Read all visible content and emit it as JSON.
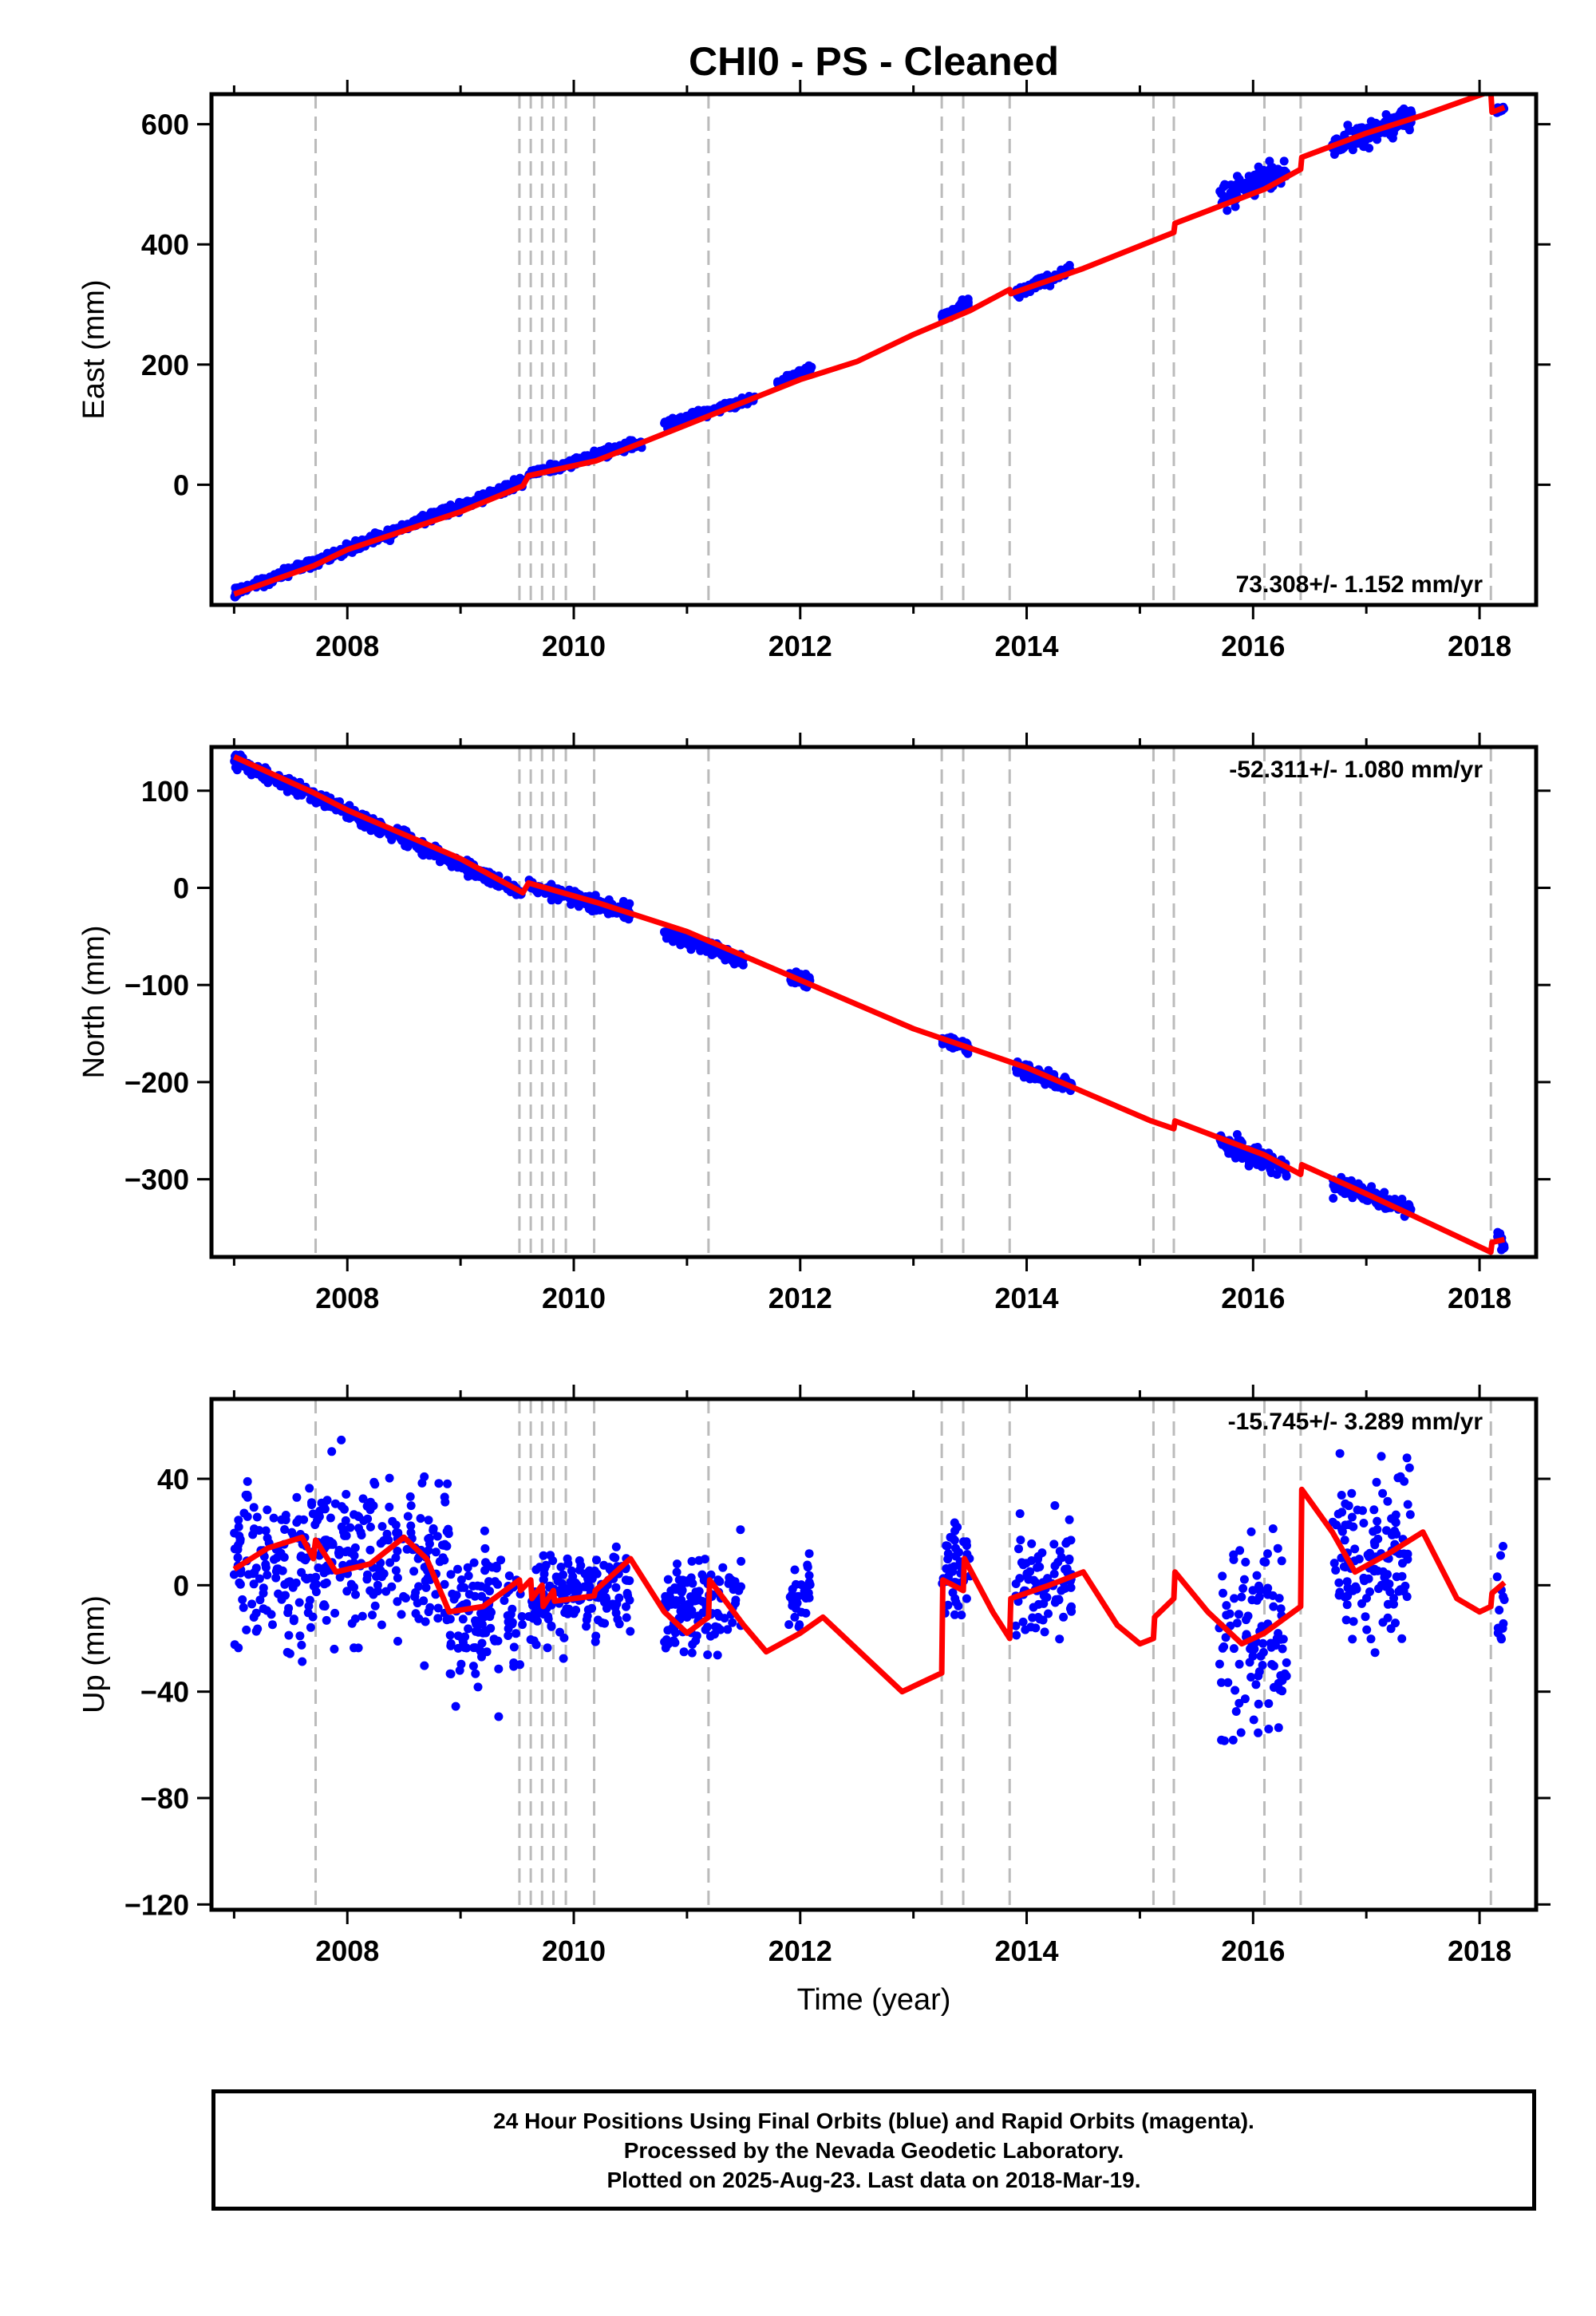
{
  "title": "CHI0  - PS - Cleaned",
  "xaxis": {
    "label": "Time (year)",
    "range": [
      2006.8,
      2018.5
    ],
    "tick_labels": [
      "2008",
      "2010",
      "2012",
      "2014",
      "2016",
      "2018"
    ],
    "ticks": [
      2008,
      2010,
      2012,
      2014,
      2016,
      2018
    ]
  },
  "colors": {
    "data": "#0000ff",
    "model": "#ff0000",
    "break_lines": "#bbbbbb",
    "frame": "#000000"
  },
  "chart_data": [
    {
      "type": "scatter",
      "panel": "east",
      "ylabel": "East (mm)",
      "ylim": [
        -200,
        650
      ],
      "yticks": [
        0,
        200,
        400,
        600
      ],
      "ytick_labels": [
        "0",
        "200",
        "400",
        "600"
      ],
      "minor_xticks": true,
      "rate_text": "73.308+/- 1.152 mm/yr",
      "rate_position": "bottom-right",
      "break_epochs": [
        2007.72,
        2009.52,
        2009.62,
        2009.72,
        2009.82,
        2009.93,
        2010.18,
        2011.19,
        2013.25,
        2013.44,
        2013.85,
        2015.12,
        2015.3,
        2016.1,
        2016.42,
        2018.1
      ],
      "data_segments": [
        {
          "start": 2007.0,
          "end": 2009.55,
          "y0": -180,
          "y1": 5,
          "scatter": 6
        },
        {
          "start": 2009.6,
          "end": 2010.6,
          "y0": 18,
          "y1": 70,
          "scatter": 5
        },
        {
          "start": 2010.8,
          "end": 2011.6,
          "y0": 100,
          "y1": 145,
          "scatter": 5
        },
        {
          "start": 2011.8,
          "end": 2012.1,
          "y0": 170,
          "y1": 195,
          "scatter": 4
        },
        {
          "start": 2013.25,
          "end": 2013.5,
          "y0": 280,
          "y1": 305,
          "scatter": 6
        },
        {
          "start": 2013.9,
          "end": 2014.4,
          "y0": 320,
          "y1": 360,
          "scatter": 6
        },
        {
          "start": 2015.7,
          "end": 2016.3,
          "y0": 480,
          "y1": 525,
          "scatter": 15
        },
        {
          "start": 2016.7,
          "end": 2017.4,
          "y0": 565,
          "y1": 610,
          "scatter": 14
        },
        {
          "start": 2018.15,
          "end": 2018.22,
          "y0": 622,
          "y1": 628,
          "scatter": 4
        }
      ],
      "model_points": [
        [
          2007.0,
          -182
        ],
        [
          2007.7,
          -135
        ],
        [
          2008.0,
          -108
        ],
        [
          2009.0,
          -45
        ],
        [
          2009.55,
          -2
        ],
        [
          2009.6,
          15
        ],
        [
          2010.2,
          40
        ],
        [
          2011.0,
          100
        ],
        [
          2012.0,
          175
        ],
        [
          2012.5,
          205
        ],
        [
          2013.0,
          250
        ],
        [
          2013.5,
          290
        ],
        [
          2013.85,
          325
        ],
        [
          2013.86,
          318
        ],
        [
          2014.5,
          360
        ],
        [
          2015.1,
          405
        ],
        [
          2015.3,
          420
        ],
        [
          2015.31,
          435
        ],
        [
          2016.1,
          492
        ],
        [
          2016.42,
          525
        ],
        [
          2016.43,
          545
        ],
        [
          2017.0,
          585
        ],
        [
          2017.5,
          615
        ],
        [
          2018.1,
          655
        ],
        [
          2018.11,
          620
        ],
        [
          2018.22,
          628
        ]
      ]
    },
    {
      "type": "scatter",
      "panel": "north",
      "ylabel": "North (mm)",
      "ylim": [
        -380,
        145
      ],
      "yticks": [
        -300,
        -200,
        -100,
        0,
        100
      ],
      "ytick_labels": [
        "−300",
        "−200",
        "−100",
        "0",
        "100"
      ],
      "minor_xticks": true,
      "rate_text": "-52.311+/- 1.080 mm/yr",
      "rate_position": "top-right",
      "break_epochs": [
        2007.72,
        2009.52,
        2009.62,
        2009.72,
        2009.82,
        2009.93,
        2010.18,
        2011.19,
        2013.25,
        2013.44,
        2013.85,
        2015.12,
        2015.3,
        2016.1,
        2016.42,
        2018.1
      ],
      "data_segments": [
        {
          "start": 2007.0,
          "end": 2009.55,
          "y0": 132,
          "y1": -5,
          "scatter": 5
        },
        {
          "start": 2009.6,
          "end": 2010.5,
          "y0": 2,
          "y1": -25,
          "scatter": 5
        },
        {
          "start": 2010.8,
          "end": 2011.5,
          "y0": -45,
          "y1": -75,
          "scatter": 5
        },
        {
          "start": 2011.9,
          "end": 2012.1,
          "y0": -90,
          "y1": -98,
          "scatter": 4
        },
        {
          "start": 2013.25,
          "end": 2013.5,
          "y0": -155,
          "y1": -165,
          "scatter": 4
        },
        {
          "start": 2013.9,
          "end": 2014.4,
          "y0": -185,
          "y1": -205,
          "scatter": 6
        },
        {
          "start": 2015.7,
          "end": 2016.3,
          "y0": -260,
          "y1": -290,
          "scatter": 7
        },
        {
          "start": 2016.7,
          "end": 2017.4,
          "y0": -305,
          "y1": -330,
          "scatter": 7
        },
        {
          "start": 2018.15,
          "end": 2018.22,
          "y0": -360,
          "y1": -370,
          "scatter": 6
        }
      ],
      "model_points": [
        [
          2007.0,
          135
        ],
        [
          2007.7,
          98
        ],
        [
          2008.0,
          80
        ],
        [
          2009.0,
          30
        ],
        [
          2009.55,
          -5
        ],
        [
          2009.6,
          5
        ],
        [
          2010.2,
          -15
        ],
        [
          2011.0,
          -45
        ],
        [
          2012.0,
          -95
        ],
        [
          2013.0,
          -145
        ],
        [
          2013.5,
          -165
        ],
        [
          2014.0,
          -185
        ],
        [
          2015.1,
          -240
        ],
        [
          2015.3,
          -248
        ],
        [
          2015.31,
          -240
        ],
        [
          2016.1,
          -275
        ],
        [
          2016.42,
          -295
        ],
        [
          2016.43,
          -285
        ],
        [
          2017.0,
          -315
        ],
        [
          2018.1,
          -375
        ],
        [
          2018.11,
          -365
        ],
        [
          2018.22,
          -362
        ]
      ]
    },
    {
      "type": "scatter",
      "panel": "up",
      "ylabel": "Up (mm)",
      "xlabel": "Time (year)",
      "ylim": [
        -122,
        70
      ],
      "yticks": [
        -120,
        -80,
        -40,
        0,
        40
      ],
      "ytick_labels": [
        "−120",
        "−80",
        "−40",
        "0",
        "40"
      ],
      "minor_xticks": true,
      "rate_text": "-15.745+/- 3.289 mm/yr",
      "rate_position": "top-right",
      "break_epochs": [
        2007.72,
        2009.52,
        2009.62,
        2009.72,
        2009.82,
        2009.93,
        2010.18,
        2011.19,
        2013.25,
        2013.44,
        2013.85,
        2015.12,
        2015.3,
        2016.1,
        2016.42,
        2018.1
      ],
      "data_segments": [
        {
          "start": 2007.0,
          "end": 2008.9,
          "y0": 8,
          "y1": 12,
          "scatter": 20
        },
        {
          "start": 2008.9,
          "end": 2009.55,
          "y0": -15,
          "y1": -10,
          "scatter": 20
        },
        {
          "start": 2009.6,
          "end": 2010.5,
          "y0": -8,
          "y1": 2,
          "scatter": 12
        },
        {
          "start": 2010.8,
          "end": 2011.5,
          "y0": -12,
          "y1": 0,
          "scatter": 12
        },
        {
          "start": 2011.9,
          "end": 2012.1,
          "y0": -5,
          "y1": 0,
          "scatter": 8
        },
        {
          "start": 2013.25,
          "end": 2013.5,
          "y0": 5,
          "y1": 5,
          "scatter": 12
        },
        {
          "start": 2013.9,
          "end": 2014.4,
          "y0": -2,
          "y1": 5,
          "scatter": 15
        },
        {
          "start": 2015.7,
          "end": 2016.3,
          "y0": -20,
          "y1": -20,
          "scatter": 25
        },
        {
          "start": 2016.7,
          "end": 2017.4,
          "y0": 8,
          "y1": 15,
          "scatter": 20
        },
        {
          "start": 2018.15,
          "end": 2018.22,
          "y0": 0,
          "y1": 0,
          "scatter": 15
        }
      ],
      "model_points": [
        [
          2007.0,
          6
        ],
        [
          2007.3,
          14
        ],
        [
          2007.6,
          18
        ],
        [
          2007.7,
          10
        ],
        [
          2007.72,
          17
        ],
        [
          2007.9,
          5
        ],
        [
          2008.2,
          8
        ],
        [
          2008.5,
          18
        ],
        [
          2008.7,
          10
        ],
        [
          2008.9,
          -10
        ],
        [
          2009.2,
          -8
        ],
        [
          2009.52,
          2
        ],
        [
          2009.53,
          -2
        ],
        [
          2009.62,
          2
        ],
        [
          2009.63,
          -5
        ],
        [
          2009.72,
          0
        ],
        [
          2009.73,
          -8
        ],
        [
          2009.82,
          -2
        ],
        [
          2009.83,
          -6
        ],
        [
          2010.0,
          -5
        ],
        [
          2010.18,
          -4
        ],
        [
          2010.19,
          -2
        ],
        [
          2010.5,
          10
        ],
        [
          2010.8,
          -10
        ],
        [
          2011.0,
          -18
        ],
        [
          2011.19,
          -12
        ],
        [
          2011.2,
          2
        ],
        [
          2011.5,
          -15
        ],
        [
          2011.7,
          -25
        ],
        [
          2012.0,
          -18
        ],
        [
          2012.2,
          -12
        ],
        [
          2012.6,
          -28
        ],
        [
          2012.9,
          -40
        ],
        [
          2013.25,
          -33
        ],
        [
          2013.26,
          2
        ],
        [
          2013.44,
          -2
        ],
        [
          2013.45,
          10
        ],
        [
          2013.7,
          -10
        ],
        [
          2013.85,
          -20
        ],
        [
          2013.86,
          -5
        ],
        [
          2014.2,
          0
        ],
        [
          2014.5,
          5
        ],
        [
          2014.8,
          -15
        ],
        [
          2015.0,
          -22
        ],
        [
          2015.12,
          -20
        ],
        [
          2015.13,
          -12
        ],
        [
          2015.3,
          -5
        ],
        [
          2015.31,
          5
        ],
        [
          2015.6,
          -10
        ],
        [
          2015.9,
          -22
        ],
        [
          2016.1,
          -18
        ],
        [
          2016.42,
          -8
        ],
        [
          2016.43,
          36
        ],
        [
          2016.7,
          20
        ],
        [
          2016.9,
          5
        ],
        [
          2017.2,
          12
        ],
        [
          2017.5,
          20
        ],
        [
          2017.8,
          -5
        ],
        [
          2018.0,
          -10
        ],
        [
          2018.1,
          -8
        ],
        [
          2018.11,
          -3
        ],
        [
          2018.22,
          1
        ]
      ]
    }
  ],
  "footer": {
    "line1": "24 Hour Positions Using Final Orbits (blue) and Rapid Orbits (magenta).",
    "line2": "Processed by the Nevada Geodetic Laboratory.",
    "line3": "Plotted on 2025-Aug-23. Last data on 2018-Mar-19."
  }
}
